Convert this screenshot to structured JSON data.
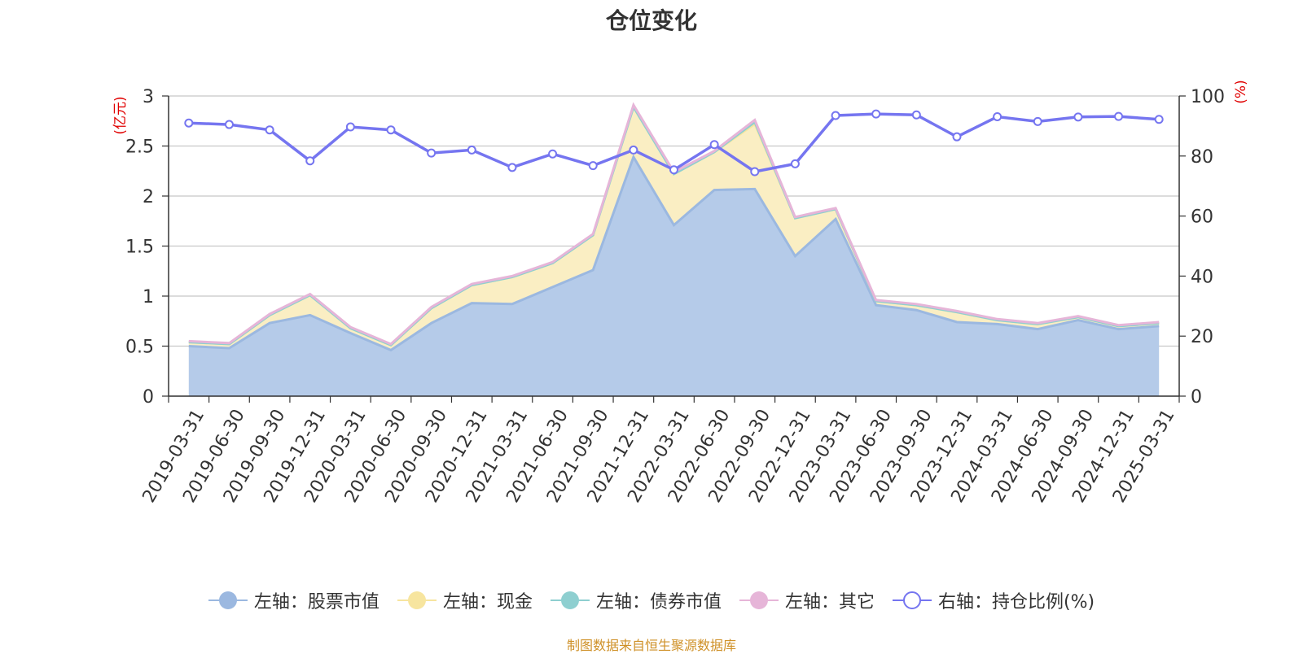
{
  "chart_data": {
    "type": "area",
    "title": "仓位变化",
    "left_axis_unit": "(亿元)",
    "right_axis_unit": "(%)",
    "left_ylim": [
      0,
      3
    ],
    "left_ticks": [
      "0",
      "0.5",
      "1",
      "1.5",
      "2",
      "2.5",
      "3"
    ],
    "right_ylim": [
      0,
      100
    ],
    "right_ticks": [
      "0",
      "20",
      "40",
      "60",
      "80",
      "100"
    ],
    "grid": true,
    "legend_position": "bottom",
    "stacked": true,
    "categories": [
      "2019-03-31",
      "2019-06-30",
      "2019-09-30",
      "2019-12-31",
      "2020-03-31",
      "2020-06-30",
      "2020-09-30",
      "2020-12-31",
      "2021-03-31",
      "2021-06-30",
      "2021-09-30",
      "2021-12-31",
      "2022-03-31",
      "2022-06-30",
      "2022-09-30",
      "2022-12-31",
      "2023-03-31",
      "2023-06-30",
      "2023-09-30",
      "2023-12-31",
      "2024-03-31",
      "2024-06-30",
      "2024-09-30",
      "2024-12-31",
      "2025-03-31"
    ],
    "series": [
      {
        "name": "左轴：股票市值",
        "axis": "left",
        "color": "#9bb8e0",
        "fill": "#b5cbe9",
        "values": [
          0.5,
          0.48,
          0.73,
          0.81,
          0.63,
          0.46,
          0.73,
          0.93,
          0.92,
          1.09,
          1.26,
          2.39,
          1.71,
          2.06,
          2.07,
          1.4,
          1.77,
          0.91,
          0.86,
          0.74,
          0.72,
          0.67,
          0.76,
          0.67,
          0.7
        ]
      },
      {
        "name": "左轴：现金",
        "axis": "left",
        "color": "#f7e59f",
        "fill": "#faeec3",
        "values": [
          0.04,
          0.04,
          0.08,
          0.2,
          0.05,
          0.05,
          0.15,
          0.18,
          0.27,
          0.24,
          0.35,
          0.5,
          0.51,
          0.38,
          0.65,
          0.38,
          0.1,
          0.04,
          0.05,
          0.1,
          0.04,
          0.05,
          0.03,
          0.03,
          0.03
        ]
      },
      {
        "name": "左轴：债券市值",
        "axis": "left",
        "color": "#8ecfd0",
        "fill": "#b8e0e0",
        "values": [
          0,
          0,
          0,
          0,
          0,
          0,
          0,
          0,
          0,
          0,
          0,
          0,
          0,
          0,
          0.02,
          0,
          0,
          0,
          0,
          0,
          0,
          0,
          0,
          0,
          0
        ]
      },
      {
        "name": "左轴：其它",
        "axis": "left",
        "color": "#e6b5d8",
        "fill": "#f2d2e8",
        "values": [
          0.01,
          0.01,
          0.01,
          0.01,
          0.01,
          0.01,
          0.01,
          0.01,
          0.01,
          0.01,
          0.01,
          0.02,
          0.02,
          0.01,
          0.02,
          0.01,
          0.01,
          0.01,
          0.01,
          0.01,
          0.01,
          0.01,
          0.01,
          0.01,
          0.01
        ]
      },
      {
        "name": "右轴：持仓比例(%)",
        "axis": "right",
        "color": "#7575f0",
        "values": [
          91.0,
          90.5,
          88.7,
          78.4,
          89.7,
          88.7,
          81.0,
          82.0,
          76.2,
          80.7,
          76.8,
          82.0,
          75.4,
          83.8,
          74.8,
          77.4,
          93.5,
          94.0,
          93.7,
          86.4,
          93.1,
          91.5,
          93.0,
          93.2,
          92.2
        ]
      }
    ]
  },
  "source_text": "制图数据来自恒生聚源数据库"
}
